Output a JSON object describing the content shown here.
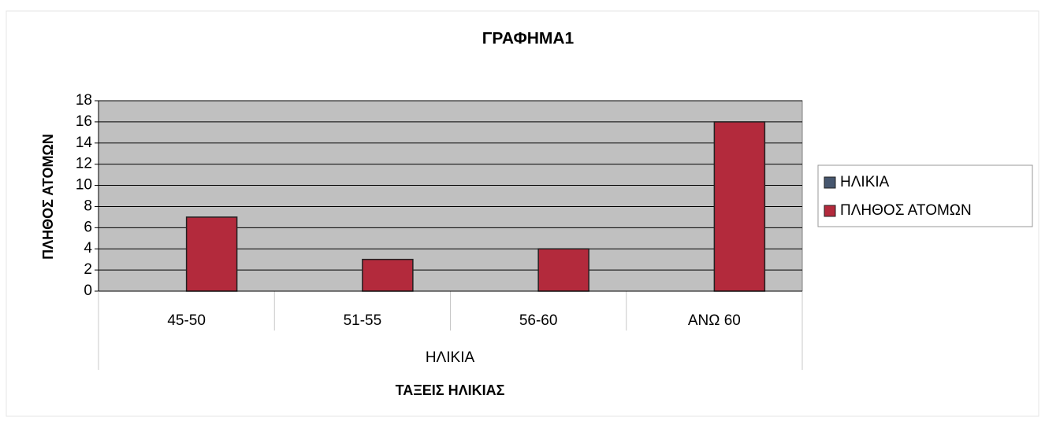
{
  "chart_data": {
    "type": "bar",
    "title": "ΓΡΑΦΗΜΑ1",
    "categories": [
      "45-50",
      "51-55",
      "56-60",
      "ΑΝΩ 60"
    ],
    "category_group": "ΗΛΙΚΙΑ",
    "x_label": "ΤΑΞΕΙΣ ΗΛΙΚΙΑΣ",
    "y_label": "ΠΛΗΘΟΣ ΑΤΟΜΩΝ",
    "series": [
      {
        "name": "ΗΛΙΚΙΑ",
        "color": "#46566e",
        "values": [
          null,
          null,
          null,
          null
        ]
      },
      {
        "name": "ΠΛΗΘΟΣ ΑΤΟΜΩΝ",
        "color": "#b32a3c",
        "values": [
          7,
          3,
          4,
          16
        ]
      }
    ],
    "ylim": [
      0,
      18
    ],
    "yticks": [
      0,
      2,
      4,
      6,
      8,
      10,
      12,
      14,
      16,
      18
    ],
    "grid": true,
    "legend": "right",
    "plot_background": "#c0c0c0"
  }
}
